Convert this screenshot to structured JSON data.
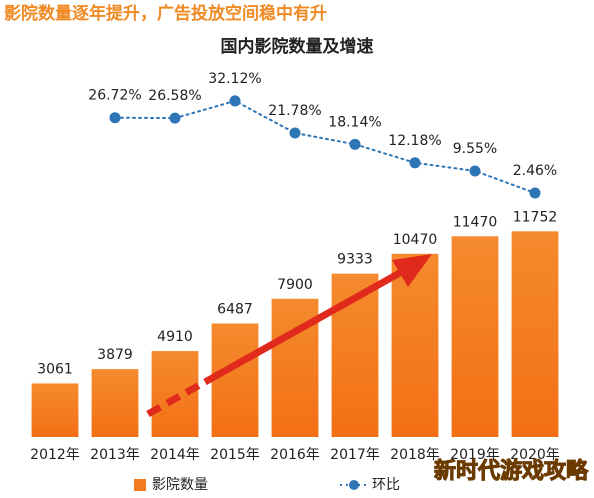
{
  "header": "影院数量逐年提升，广告投放空间稳中有升",
  "watermark": "新时代游戏攻略",
  "chart_data": {
    "type": "bar",
    "title": "国内影院数量及增速",
    "categories": [
      "2012年",
      "2013年",
      "2014年",
      "2015年",
      "2016年",
      "2017年",
      "2018年",
      "2019年",
      "2020年"
    ],
    "series": [
      {
        "name": "影院数量",
        "type": "bar",
        "color": "#f47b20",
        "values": [
          3061,
          3879,
          4910,
          6487,
          7900,
          9333,
          10470,
          11470,
          11752
        ]
      },
      {
        "name": "环比",
        "type": "line",
        "axis": "y2",
        "color": "#2e75b6",
        "values": [
          null,
          26.72,
          26.58,
          32.12,
          21.78,
          18.14,
          12.18,
          9.55,
          2.46
        ],
        "value_labels": [
          null,
          "26.72%",
          "26.58%",
          "32.12%",
          "21.78%",
          "18.14%",
          "12.18%",
          "9.55%",
          "2.46%"
        ]
      }
    ],
    "ylim": [
      0,
      12000
    ],
    "y2lim": [
      0,
      35
    ],
    "legend": "bottom"
  }
}
